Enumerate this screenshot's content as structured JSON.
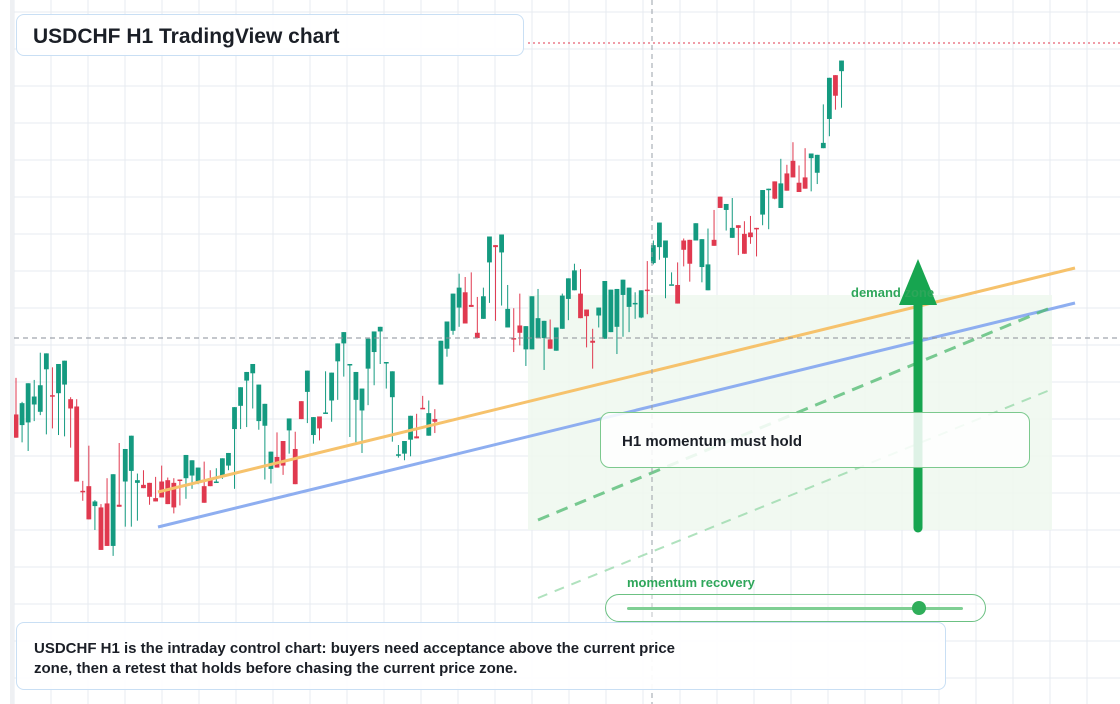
{
  "title": "USDCHF H1 TradingView chart",
  "labels": {
    "callout": "H1 momentum must hold",
    "zone": "demand zone",
    "recovery": "momentum recovery"
  },
  "note": "USDCHF H1 is the intraday control chart: buyers need acceptance above the current price zone, then a retest that holds before chasing the current price zone.",
  "colors": {
    "up": "#149a80",
    "down": "#e0394f",
    "trend_orange": "#f6c26c",
    "trend_blue": "#8eaef0",
    "accent_green": "#2fae5a",
    "grid": "#e7ebf0",
    "card_border": "#c9dff4"
  },
  "chart_data": {
    "type": "candlestick",
    "symbol": "USDCHF",
    "timeframe": "H1",
    "ylim": [
      0,
      1000
    ],
    "grid": true,
    "candles": [
      [
        421,
        476,
        386,
        386
      ],
      [
        405,
        440,
        379,
        438
      ],
      [
        409,
        438,
        366,
        468
      ],
      [
        436,
        473,
        411,
        448
      ],
      [
        425,
        514,
        420,
        465
      ],
      [
        489,
        451,
        391,
        513
      ],
      [
        450,
        492,
        400,
        448
      ],
      [
        453,
        495,
        390,
        497
      ],
      [
        466,
        481,
        388,
        502
      ],
      [
        444,
        447,
        371,
        430
      ],
      [
        433,
        444,
        320,
        320
      ],
      [
        306,
        321,
        291,
        304
      ],
      [
        313,
        374,
        274,
        263
      ],
      [
        283,
        292,
        247,
        290
      ],
      [
        281,
        286,
        222,
        217
      ],
      [
        287,
        275,
        325,
        223
      ],
      [
        223,
        281,
        208,
        331
      ],
      [
        285,
        288,
        378,
        282
      ],
      [
        320,
        286,
        252,
        369
      ],
      [
        336,
        284,
        252,
        389
      ],
      [
        318,
        332,
        261,
        322
      ],
      [
        315,
        326,
        337,
        310
      ],
      [
        318,
        317,
        285,
        297
      ],
      [
        295,
        327,
        318,
        290
      ],
      [
        320,
        317,
        344,
        296
      ],
      [
        322,
        321,
        326,
        286
      ],
      [
        318,
        325,
        272,
        281
      ],
      [
        323,
        306,
        284,
        321
      ],
      [
        325,
        303,
        294,
        360
      ],
      [
        329,
        325,
        309,
        352
      ],
      [
        320,
        325,
        316,
        341
      ],
      [
        313,
        324,
        350,
        288
      ],
      [
        325,
        337,
        333,
        313
      ],
      [
        319,
        338,
        340,
        320
      ],
      [
        327,
        324,
        331,
        355
      ],
      [
        344,
        337,
        338,
        363
      ],
      [
        399,
        309,
        319,
        432
      ],
      [
        434,
        404,
        399,
        462
      ],
      [
        472,
        432,
        402,
        485
      ],
      [
        483,
        451,
        430,
        497
      ],
      [
        411,
        410,
        398,
        466
      ],
      [
        404,
        323,
        347,
        437
      ],
      [
        339,
        354,
        317,
        365
      ],
      [
        357,
        368,
        394,
        341
      ],
      [
        381,
        330,
        333,
        344
      ],
      [
        397,
        362,
        382,
        415
      ],
      [
        369,
        388,
        395,
        316
      ],
      [
        441,
        441,
        416,
        414
      ],
      [
        455,
        408,
        412,
        487
      ],
      [
        390,
        408,
        377,
        417
      ],
      [
        418,
        401,
        382,
        400
      ],
      [
        423,
        486,
        444,
        424
      ],
      [
        442,
        444,
        410,
        484
      ],
      [
        501,
        468,
        443,
        528
      ],
      [
        528,
        505,
        478,
        545
      ],
      [
        495,
        387,
        395,
        497
      ],
      [
        443,
        444,
        379,
        485
      ],
      [
        427,
        427,
        363,
        460
      ],
      [
        490,
        456,
        435,
        535
      ],
      [
        515,
        495,
        465,
        546
      ],
      [
        546,
        526,
        497,
        553
      ],
      [
        499,
        477,
        460,
        500
      ],
      [
        447,
        380,
        392,
        486
      ],
      [
        360,
        375,
        356,
        361
      ],
      [
        362,
        360,
        352,
        381
      ],
      [
        383,
        391,
        358,
        419
      ],
      [
        388,
        422,
        393,
        385
      ],
      [
        431,
        449,
        432,
        429
      ],
      [
        389,
        442,
        405,
        423
      ],
      [
        414,
        429,
        393,
        410
      ],
      [
        466,
        503,
        469,
        532
      ],
      [
        520,
        552,
        508,
        561
      ],
      [
        547,
        577,
        541,
        603
      ],
      [
        582,
        633,
        553,
        612
      ],
      [
        605,
        628,
        605,
        558
      ],
      [
        586,
        587,
        635,
        583
      ],
      [
        544,
        598,
        566,
        536
      ],
      [
        565,
        612,
        604,
        599
      ],
      [
        650,
        602,
        589,
        689
      ],
      [
        676,
        562,
        579,
        673
      ],
      [
        665,
        629,
        585,
        692
      ],
      [
        552,
        586,
        616,
        580
      ],
      [
        536,
        581,
        515,
        535
      ],
      [
        555,
        525,
        603,
        544
      ],
      [
        519,
        508,
        494,
        554
      ],
      [
        519,
        546,
        554,
        599
      ],
      [
        536,
        610,
        571,
        566
      ],
      [
        536,
        488,
        547,
        562
      ],
      [
        534,
        542,
        564,
        520
      ],
      [
        517,
        521,
        520,
        552
      ],
      [
        550,
        603,
        562,
        600
      ],
      [
        595,
        612,
        563,
        626
      ],
      [
        608,
        648,
        612,
        638
      ],
      [
        603,
        594,
        640,
        566
      ],
      [
        579,
        522,
        547,
        569
      ],
      [
        532,
        550,
        490,
        529
      ],
      [
        570,
        561,
        552,
        582
      ],
      [
        535,
        611,
        557,
        622
      ],
      [
        545,
        550,
        565,
        609
      ],
      [
        553,
        512,
        562,
        610
      ],
      [
        601,
        538,
        572,
        624
      ],
      [
        583,
        545,
        579,
        612
      ],
      [
        587,
        605,
        565,
        589
      ],
      [
        567,
        566,
        601,
        608
      ],
      [
        609,
        652,
        572,
        608
      ],
      [
        649,
        683,
        647,
        676
      ],
      [
        673,
        654,
        663,
        710
      ],
      [
        657,
        596,
        609,
        683
      ],
      [
        617,
        633,
        635,
        617
      ],
      [
        616,
        650,
        612,
        588
      ],
      [
        683,
        644,
        686,
        669
      ],
      [
        684,
        656,
        621,
        648
      ],
      [
        683,
        696,
        701,
        709
      ],
      [
        643,
        639,
        620,
        685
      ],
      [
        608,
        701,
        625,
        647
      ],
      [
        684,
        729,
        720,
        675
      ],
      [
        749,
        737,
        748,
        732
      ],
      [
        729,
        729,
        698,
        738
      ],
      [
        687,
        719,
        747,
        702
      ],
      [
        706,
        697,
        661,
        702
      ],
      [
        693,
        712,
        669,
        663
      ],
      [
        695,
        720,
        678,
        688
      ],
      [
        702,
        668,
        659,
        701
      ],
      [
        722,
        715,
        706,
        759
      ],
      [
        759,
        700,
        705,
        761
      ],
      [
        772,
        745,
        753,
        746
      ],
      [
        732,
        785,
        806,
        769
      ],
      [
        784,
        790,
        797,
        758
      ],
      [
        803,
        831,
        790,
        778
      ],
      [
        770,
        796,
        778,
        756
      ],
      [
        778,
        787,
        822,
        761
      ],
      [
        807,
        757,
        786,
        814
      ],
      [
        785,
        768,
        791,
        812
      ],
      [
        822,
        888,
        878,
        830
      ],
      [
        866,
        865,
        840,
        928
      ],
      [
        932,
        887,
        880,
        901
      ],
      [
        938,
        916,
        883,
        954
      ]
    ]
  }
}
